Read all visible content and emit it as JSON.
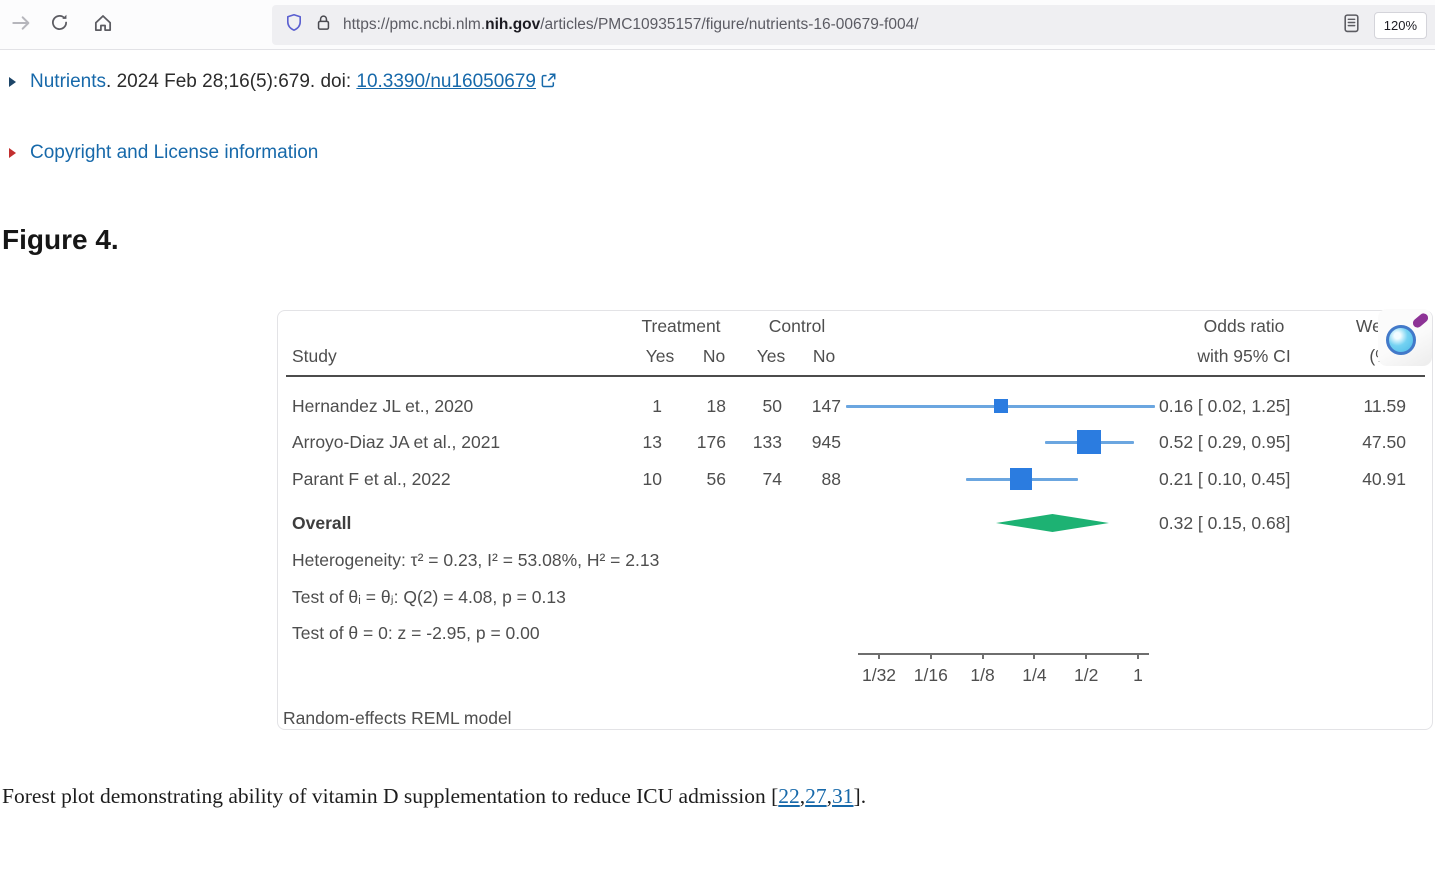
{
  "browser": {
    "url_prefix": "https://pmc.ncbi.nlm.",
    "url_domain_bold": "nih.gov",
    "url_suffix": "/articles/PMC10935157/figure/nutrients-16-00679-f004/",
    "zoom_level": "120%"
  },
  "icons": [
    "forward-arrow-icon",
    "refresh-icon",
    "home-icon",
    "shield-icon",
    "lock-icon",
    "reader-view-icon",
    "external-link-icon",
    "zoom-cursor-icon",
    "triangle-marker-icon"
  ],
  "article": {
    "journal_link": "Nutrients",
    "citation_rest": ". 2024 Feb 28;16(5):679. doi: ",
    "doi_link": "10.3390/nu16050679",
    "copyright_link": "Copyright and License information",
    "figure_title": "Figure 4.",
    "caption": {
      "prefix": "Forest plot demonstrating ability of vitamin D supplementation to reduce ICU admission [",
      "refs": [
        "22",
        "27",
        "31"
      ],
      "separator": ",",
      "suffix": "]."
    }
  },
  "chart_data": {
    "type": "forest",
    "header": {
      "study": "Study",
      "treatment": "Treatment",
      "control": "Control",
      "yes": "Yes",
      "no": "No",
      "or_line1": "Odds ratio",
      "or_line2": "with 95% CI",
      "weight_line1": "Weight",
      "weight_line2": "(%)"
    },
    "studies": [
      {
        "name": "Hernandez JL et., 2020",
        "t_yes": "1",
        "t_no": "18",
        "c_yes": "50",
        "c_no": "147",
        "or": 0.16,
        "ci_low": 0.02,
        "ci_high": 1.25,
        "or_label": "0.16 [ 0.02,  1.25]",
        "weight": 11.59,
        "weight_label": "11.59"
      },
      {
        "name": "Arroyo-Diaz JA et al., 2021",
        "t_yes": "13",
        "t_no": "176",
        "c_yes": "133",
        "c_no": "945",
        "or": 0.52,
        "ci_low": 0.29,
        "ci_high": 0.95,
        "or_label": "0.52 [ 0.29,  0.95]",
        "weight": 47.5,
        "weight_label": "47.50"
      },
      {
        "name": "Parant F et al., 2022",
        "t_yes": "10",
        "t_no": "56",
        "c_yes": "74",
        "c_no": "88",
        "or": 0.21,
        "ci_low": 0.1,
        "ci_high": 0.45,
        "or_label": "0.21 [ 0.10,  0.45]",
        "weight": 40.91,
        "weight_label": "40.91"
      }
    ],
    "overall": {
      "label": "Overall",
      "or": 0.32,
      "ci_low": 0.15,
      "ci_high": 0.68,
      "or_label": "0.32 [ 0.15,  0.68]"
    },
    "stats_lines": [
      "Heterogeneity: τ² = 0.23, I² = 53.08%, H² = 2.13",
      "Test of θᵢ = θⱼ: Q(2) = 4.08, p = 0.13",
      "Test of θ = 0: z = -2.95, p  = 0.00"
    ],
    "axis": {
      "scale": "log2",
      "tick_labels": [
        "1/32",
        "1/16",
        "1/8",
        "1/4",
        "1/2",
        "1"
      ],
      "tick_values": [
        0.03125,
        0.0625,
        0.125,
        0.25,
        0.5,
        1
      ]
    },
    "footnote": "Random-effects REML model",
    "colors": {
      "marker": "#2b7ce0",
      "ci_line": "#6ba6e0",
      "diamond": "#1db273"
    }
  }
}
